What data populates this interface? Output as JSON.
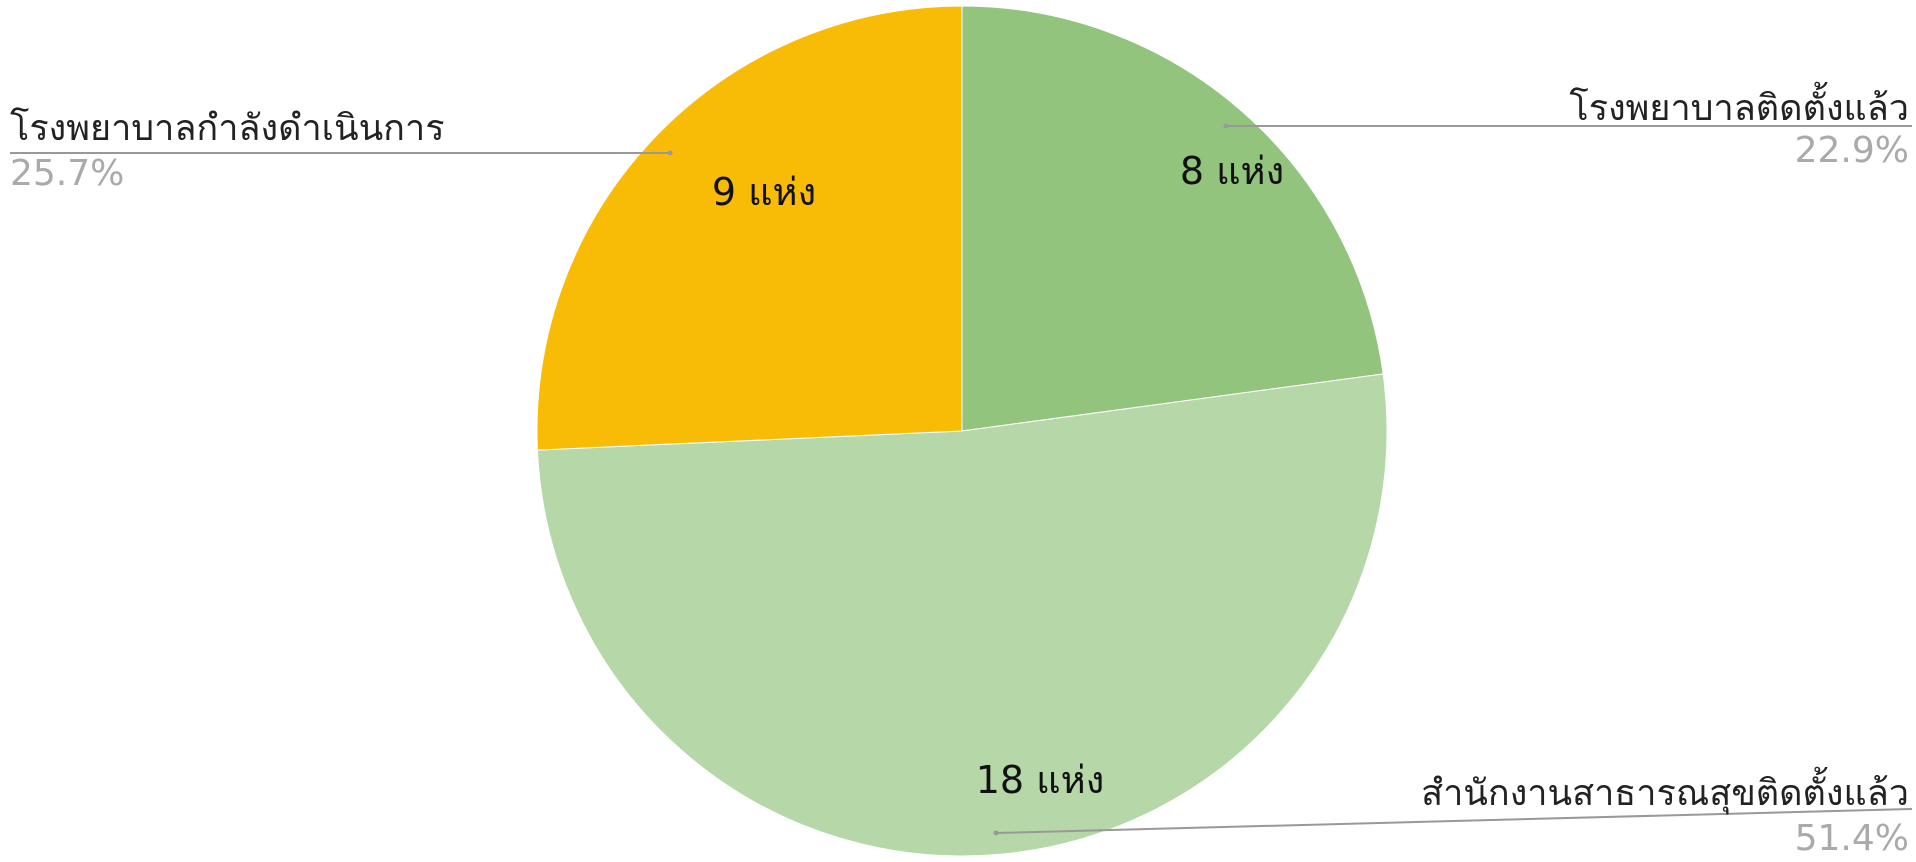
{
  "chart_data": {
    "type": "pie",
    "categories": [
      "โรงพยาบาลติดตั้งแล้ว",
      "สำนักงานสาธารณสุขติดตั้งแล้ว",
      "โรงพยาบาลกำลังดำเนินการ"
    ],
    "values": [
      8,
      18,
      9
    ],
    "value_labels": [
      "8  แห่ง",
      "18  แห่ง",
      "9  แห่ง"
    ],
    "percent_values": [
      22.9,
      51.4,
      25.7
    ],
    "percent_labels": [
      "22.9%",
      "51.4%",
      "25.7%"
    ],
    "colors": [
      "#93c47d",
      "#b6d7a8",
      "#f9bc06"
    ]
  }
}
